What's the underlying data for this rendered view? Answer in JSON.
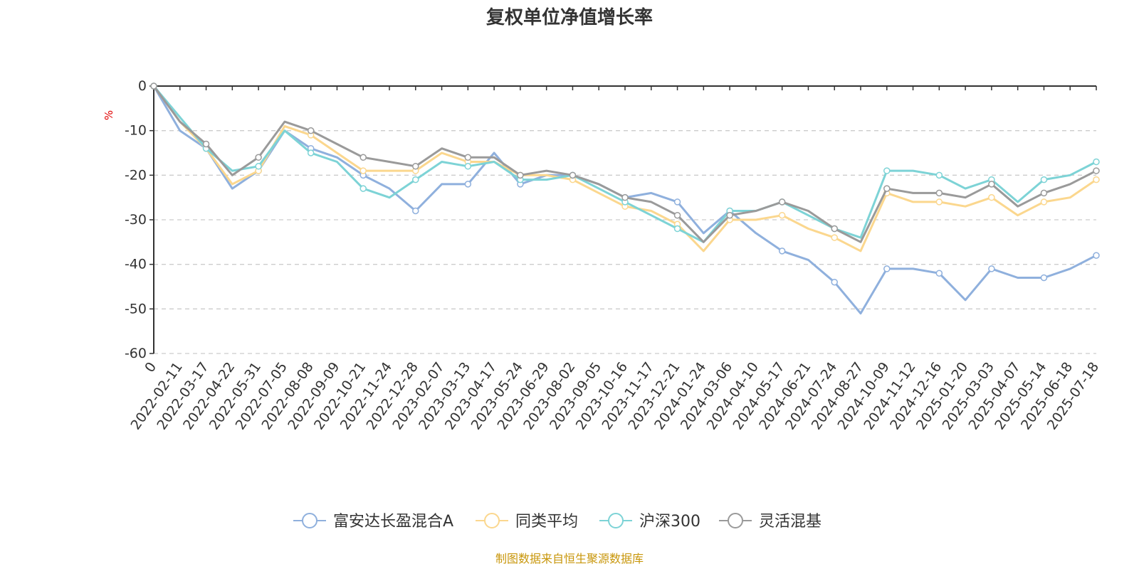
{
  "chart_data": {
    "type": "line",
    "title": "复权单位净值增长率",
    "ylabel": "%",
    "ylim": [
      -60,
      0
    ],
    "yticks": [
      0,
      -10,
      -20,
      -30,
      -40,
      -50,
      -60
    ],
    "grid": "horizontal dashed",
    "legend_position": "bottom",
    "x_labels": [
      "0",
      "2022-02-11",
      "2022-03-17",
      "2022-04-22",
      "2022-05-31",
      "2022-07-05",
      "2022-08-08",
      "2022-09-09",
      "2022-10-21",
      "2022-11-24",
      "2022-12-28",
      "2023-02-07",
      "2023-03-13",
      "2023-04-17",
      "2023-05-24",
      "2023-06-29",
      "2023-08-02",
      "2023-09-05",
      "2023-10-16",
      "2023-11-17",
      "2023-12-21",
      "2024-01-24",
      "2024-03-06",
      "2024-04-10",
      "2024-05-17",
      "2024-06-21",
      "2024-07-24",
      "2024-08-27",
      "2024-10-09",
      "2024-11-12",
      "2024-12-16",
      "2025-01-20",
      "2025-03-03",
      "2025-04-07",
      "2025-05-14",
      "2025-06-18",
      "2025-07-18"
    ],
    "series": [
      {
        "name": "富安达长盈混合A",
        "color": "#8fb0dd",
        "values": [
          0,
          -10,
          -14,
          -23,
          -19,
          -10,
          -14,
          -16,
          -20,
          -23,
          -28,
          -22,
          -22,
          -15,
          -22,
          -20,
          -20,
          -22,
          -25,
          -24,
          -26,
          -33,
          -28,
          -33,
          -37,
          -39,
          -44,
          -51,
          -41,
          -41,
          -42,
          -48,
          -41,
          -43,
          -43,
          -41,
          -38
        ]
      },
      {
        "name": "同类平均",
        "color": "#fbd78e",
        "values": [
          0,
          -8,
          -14,
          -22,
          -19,
          -9,
          -11,
          -15,
          -19,
          -19,
          -19,
          -15,
          -17,
          -17,
          -20,
          -20,
          -21,
          -24,
          -27,
          -28,
          -31,
          -37,
          -30,
          -30,
          -29,
          -32,
          -34,
          -37,
          -24,
          -26,
          -26,
          -27,
          -25,
          -29,
          -26,
          -25,
          -21
        ]
      },
      {
        "name": "沪深300",
        "color": "#7dd3d6",
        "values": [
          0,
          -7,
          -14,
          -19,
          -18,
          -10,
          -15,
          -17,
          -23,
          -25,
          -21,
          -17,
          -18,
          -17,
          -21,
          -21,
          -20,
          -23,
          -26,
          -29,
          -32,
          -35,
          -28,
          -28,
          -26,
          -29,
          -32,
          -34,
          -19,
          -19,
          -20,
          -23,
          -21,
          -26,
          -21,
          -20,
          -17
        ]
      },
      {
        "name": "灵活混基",
        "color": "#9a9a9a",
        "values": [
          0,
          -8,
          -13,
          -20,
          -16,
          -8,
          -10,
          -13,
          -16,
          -17,
          -18,
          -14,
          -16,
          -16,
          -20,
          -19,
          -20,
          -22,
          -25,
          -26,
          -29,
          -35,
          -29,
          -28,
          -26,
          -28,
          -32,
          -35,
          -23,
          -24,
          -24,
          -25,
          -22,
          -27,
          -24,
          -22,
          -19
        ]
      }
    ]
  },
  "source_text": "制图数据来自恒生聚源数据库"
}
